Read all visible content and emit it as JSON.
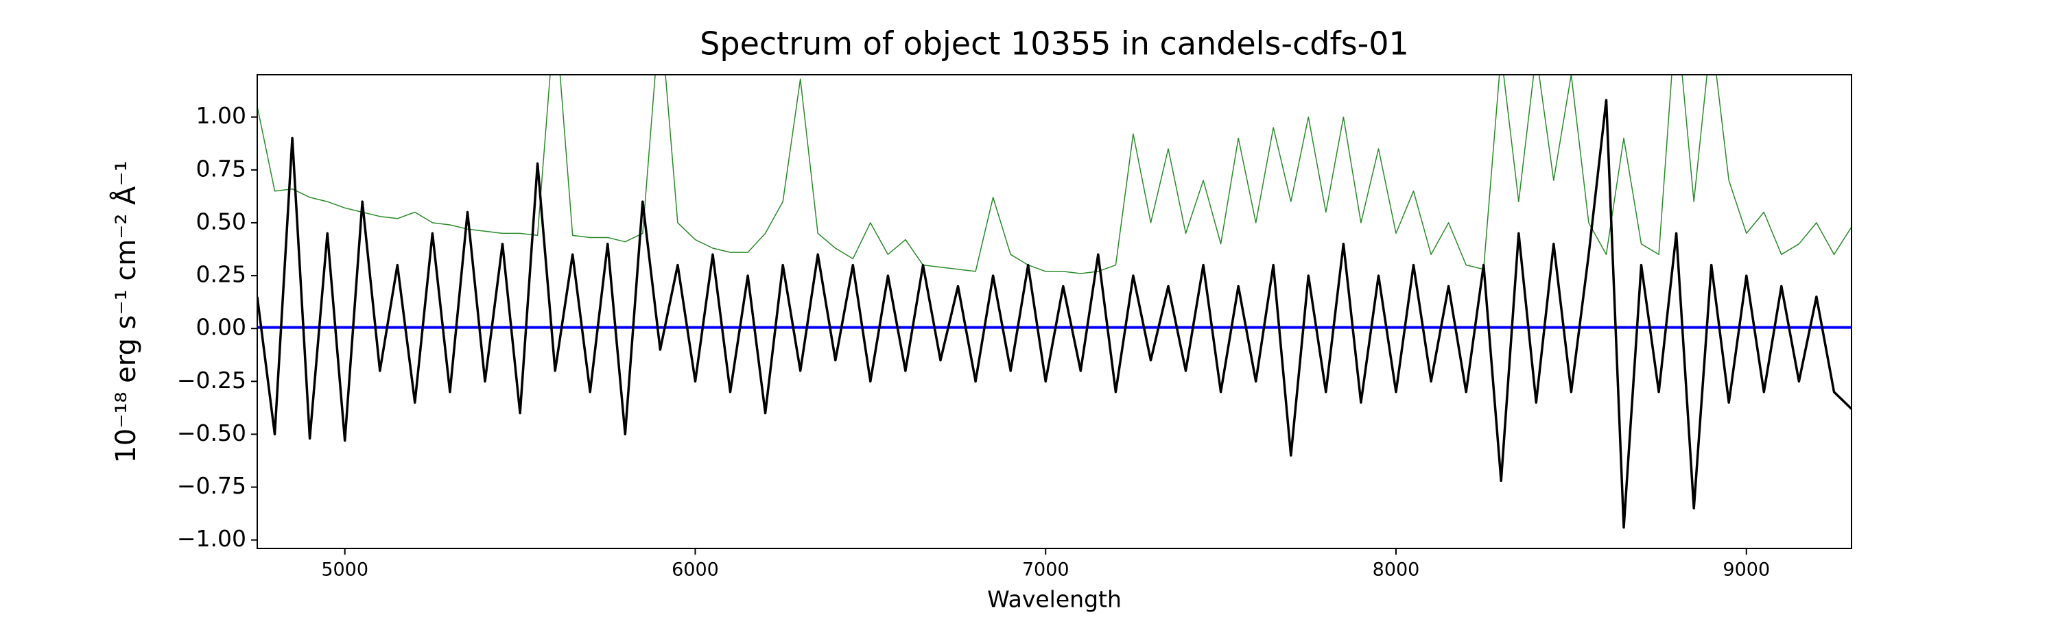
{
  "chart_data": {
    "type": "line",
    "title": "Spectrum of object 10355 in candels-cdfs-01",
    "xlabel": "Wavelength",
    "ylabel": "10⁻¹⁸ erg s⁻¹ cm⁻² Å⁻¹",
    "xlim": [
      4750,
      9300
    ],
    "ylim": [
      -1.04,
      1.2
    ],
    "xticks": [
      5000,
      6000,
      7000,
      8000,
      9000
    ],
    "yticks": [
      {
        "value": -1,
        "label": "−1.00"
      },
      {
        "value": -0.75,
        "label": "−0.75"
      },
      {
        "value": -0.5,
        "label": "−0.50"
      },
      {
        "value": -0.25,
        "label": "−0.25"
      },
      {
        "value": 0,
        "label": "0.00"
      },
      0.25,
      {
        "value": 0.5,
        "label": "0.50"
      },
      0.75,
      {
        "value": 1,
        "label": "1.00"
      }
    ],
    "x": [
      4750,
      4800,
      4850,
      4900,
      4950,
      5000,
      5050,
      5100,
      5150,
      5200,
      5250,
      5300,
      5350,
      5400,
      5450,
      5500,
      5550,
      5600,
      5650,
      5700,
      5750,
      5800,
      5850,
      5900,
      5950,
      6000,
      6050,
      6100,
      6150,
      6200,
      6250,
      6300,
      6350,
      6400,
      6450,
      6500,
      6550,
      6600,
      6650,
      6700,
      6750,
      6800,
      6850,
      6900,
      6950,
      7000,
      7050,
      7100,
      7150,
      7200,
      7250,
      7300,
      7350,
      7400,
      7450,
      7500,
      7550,
      7600,
      7650,
      7700,
      7750,
      7800,
      7850,
      7900,
      7950,
      8000,
      8050,
      8100,
      8150,
      8200,
      8250,
      8300,
      8350,
      8400,
      8450,
      8500,
      8550,
      8600,
      8650,
      8700,
      8750,
      8800,
      8850,
      8900,
      8950,
      9000,
      9050,
      9100,
      9150,
      9200,
      9250,
      9300
    ],
    "series": [
      {
        "color": "#2a8a2a",
        "width": 1.5,
        "values": [
          1.05,
          0.65,
          0.66,
          0.62,
          0.6,
          0.57,
          0.55,
          0.53,
          0.52,
          0.55,
          0.5,
          0.49,
          0.47,
          0.46,
          0.45,
          0.45,
          0.44,
          1.5,
          0.44,
          0.43,
          0.43,
          0.41,
          0.45,
          1.5,
          0.5,
          0.42,
          0.38,
          0.36,
          0.36,
          0.45,
          0.6,
          1.18,
          0.45,
          0.38,
          0.33,
          0.5,
          0.35,
          0.42,
          0.3,
          0.29,
          0.28,
          0.27,
          0.62,
          0.35,
          0.3,
          0.27,
          0.27,
          0.26,
          0.27,
          0.3,
          0.92,
          0.5,
          0.85,
          0.45,
          0.7,
          0.4,
          0.9,
          0.5,
          0.95,
          0.6,
          1.0,
          0.55,
          1.0,
          0.5,
          0.85,
          0.45,
          0.65,
          0.35,
          0.5,
          0.3,
          0.28,
          1.3,
          0.6,
          1.3,
          0.7,
          1.2,
          0.5,
          0.35,
          0.9,
          0.4,
          0.35,
          1.5,
          0.6,
          1.4,
          0.7,
          0.45,
          0.55,
          0.35,
          0.4,
          0.5,
          0.35,
          0.48
        ]
      },
      {
        "color": "#0000ff",
        "width": 4,
        "x": [
          4750,
          9300
        ],
        "values": [
          0.005,
          0.005
        ]
      },
      {
        "color": "#000000",
        "width": 3.5,
        "values": [
          0.15,
          -0.5,
          0.9,
          -0.52,
          0.45,
          -0.53,
          0.6,
          -0.2,
          0.3,
          -0.35,
          0.45,
          -0.3,
          0.55,
          -0.25,
          0.4,
          -0.4,
          0.78,
          -0.2,
          0.35,
          -0.3,
          0.4,
          -0.5,
          0.6,
          -0.1,
          0.3,
          -0.25,
          0.35,
          -0.3,
          0.25,
          -0.4,
          0.3,
          -0.2,
          0.35,
          -0.15,
          0.3,
          -0.25,
          0.25,
          -0.2,
          0.3,
          -0.15,
          0.2,
          -0.25,
          0.25,
          -0.2,
          0.3,
          -0.25,
          0.2,
          -0.2,
          0.35,
          -0.3,
          0.25,
          -0.15,
          0.2,
          -0.2,
          0.3,
          -0.3,
          0.2,
          -0.25,
          0.3,
          -0.6,
          0.25,
          -0.3,
          0.4,
          -0.35,
          0.25,
          -0.3,
          0.3,
          -0.25,
          0.2,
          -0.3,
          0.3,
          -0.72,
          0.45,
          -0.35,
          0.4,
          -0.3,
          0.35,
          1.08,
          -0.94,
          0.3,
          -0.3,
          0.45,
          -0.85,
          0.3,
          -0.35,
          0.25,
          -0.3,
          0.2,
          -0.25,
          0.15,
          -0.3,
          -0.38
        ]
      }
    ]
  }
}
